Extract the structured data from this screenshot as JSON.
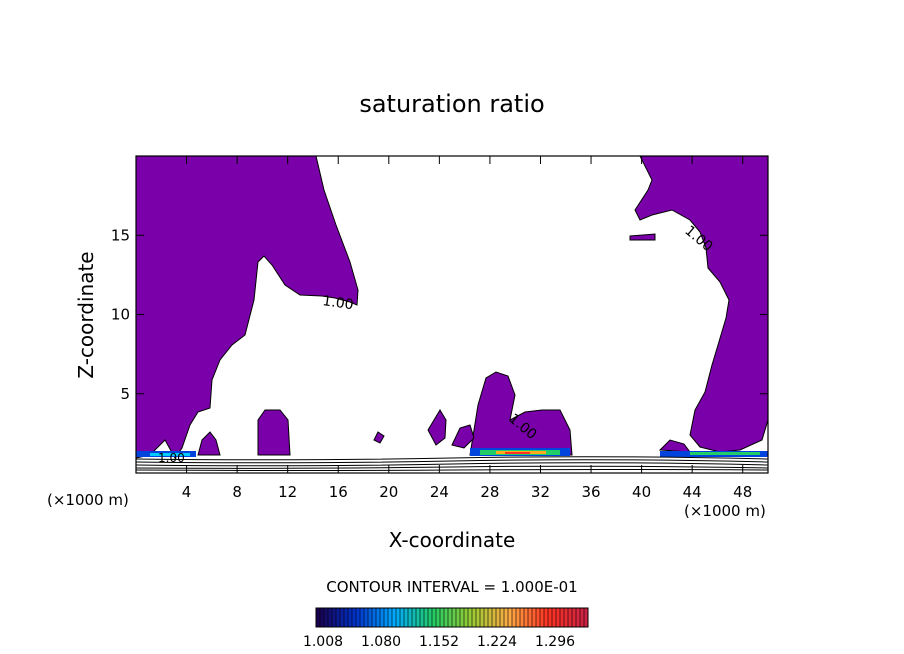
{
  "chart_data": {
    "type": "contour",
    "title": "saturation ratio",
    "xlabel": "X-coordinate",
    "ylabel": "Z-coordinate",
    "x_unit": "(×1000 m)",
    "y_unit": "(×1000 m)",
    "xlim": [
      0,
      50
    ],
    "ylim": [
      0,
      20
    ],
    "x_ticks": [
      4,
      8,
      12,
      16,
      20,
      24,
      28,
      32,
      36,
      40,
      44,
      48
    ],
    "y_ticks": [
      5,
      10,
      15
    ],
    "contour_interval_text": "CONTOUR INTERVAL = 1.000E-01",
    "contour_label": "1.00",
    "fill_color": "#7a00aa",
    "colorbar": {
      "tick_labels": [
        "1.008",
        "1.080",
        "1.152",
        "1.224",
        "1.296"
      ],
      "colors": [
        "#1a0050",
        "#0033cc",
        "#00aaff",
        "#22cc66",
        "#99cc33",
        "#ffaa44",
        "#ff3322",
        "#cc2244"
      ]
    }
  }
}
